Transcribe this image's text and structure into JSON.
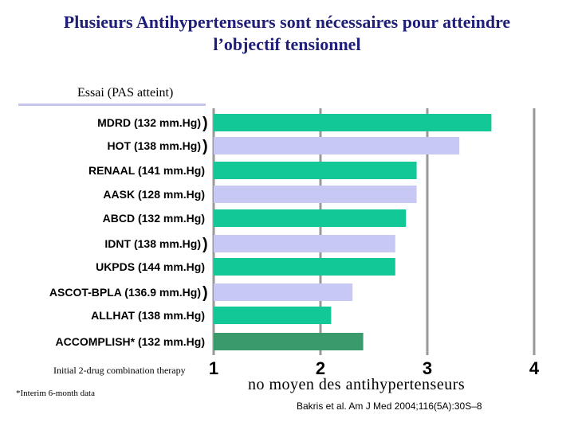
{
  "title": {
    "line1": "Plusieurs Antihypertenseurs sont nécessaires pour atteindre",
    "line2": "l’objectif tensionnel"
  },
  "header_label": "Essai (PAS atteint)",
  "axis_note": "Initial 2-drug combination therapy",
  "footnote": "*Interim 6-month data",
  "source": "Bakris et al. Am J Med 2004;116(5A):30S–8",
  "colors": {
    "green": "#12c896",
    "lavender": "#c8c8f4",
    "dark_green": "#3b9a6c",
    "title": "#1f1f78",
    "grid": "#999999"
  },
  "chart_data": {
    "type": "bar",
    "orientation": "horizontal",
    "title": "Plusieurs Antihypertenseurs sont nécessaires pour atteindre l’objectif tensionnel",
    "xlabel": "no moyen des antihypertenseurs",
    "ylabel": "Essai (PAS atteint)",
    "xlim": [
      1,
      4
    ],
    "xticks": [
      "1",
      "2",
      "3",
      "4"
    ],
    "grid": true,
    "categories": [
      "MDRD (132 mm.Hg)",
      "HOT (138 mm.Hg)",
      "RENAAL (141 mm.Hg)",
      "AASK (128 mm.Hg)",
      "ABCD (132 mm.Hg)",
      "IDNT (138 mm.Hg)",
      "UKPDS (144 mm.Hg)",
      "ASCOT-BPLA (136.9 mm.Hg)",
      "ALLHAT (138 mm.Hg)",
      "ACCOMPLISH* (132 mm.Hg)"
    ],
    "values": [
      3.6,
      3.3,
      2.9,
      2.9,
      2.8,
      2.7,
      2.7,
      2.3,
      2.1,
      2.4
    ],
    "bar_colors": [
      "green",
      "lavender",
      "green",
      "lavender",
      "green",
      "lavender",
      "green",
      "lavender",
      "green",
      "dark_green"
    ],
    "brackets_after": [
      "MDRD (132 mm.Hg)",
      "HOT (138 mm.Hg)",
      "IDNT (138 mm.Hg)",
      "ASCOT-BPLA (136.9 mm.Hg)"
    ]
  }
}
